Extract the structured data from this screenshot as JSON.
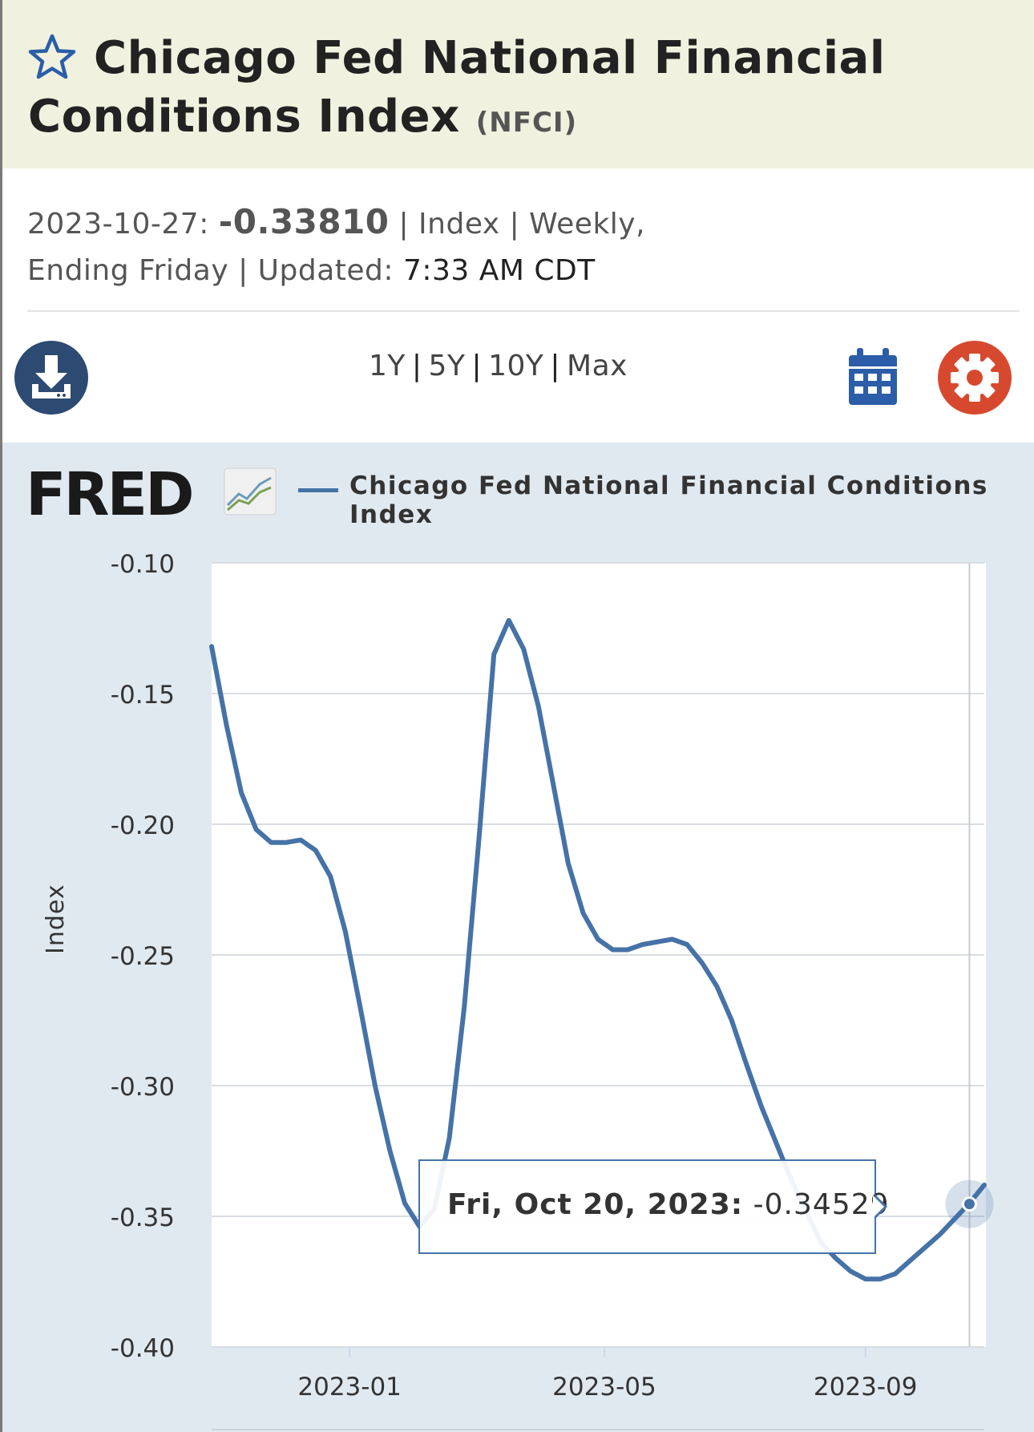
{
  "header": {
    "title_line1": "Chicago Fed National Financial",
    "title_line2": "Conditions Index",
    "series_code": "(NFCI)"
  },
  "meta": {
    "date": "2023-10-27:",
    "value": "-0.33810",
    "sep1": " | Index | Weekly,",
    "line2_prefix": "Ending Friday | Updated: ",
    "updated": "7:33 AM CDT"
  },
  "toolbar": {
    "ranges": [
      "1Y",
      "5Y",
      "10Y",
      "Max"
    ]
  },
  "icons": {
    "favorite": "star-icon",
    "download": "download-icon",
    "calendar": "calendar-icon",
    "settings": "gear-icon"
  },
  "colors": {
    "header_bg": "#f0f2df",
    "chart_bg": "#e1e9f0",
    "series": "#4572a7",
    "download_btn": "#2c4a72",
    "settings_btn": "#d7492f"
  },
  "chart": {
    "logo_text": "FRED",
    "legend": "Chicago Fed National Financial Conditions Index",
    "ylabel": "Index"
  },
  "tooltip": {
    "date": "Fri, Oct 20, 2023:",
    "value": "-0.34529"
  },
  "chart_data": {
    "type": "line",
    "title": "",
    "legend": "Chicago Fed National Financial Conditions Index",
    "xlabel": "",
    "ylabel": "Index",
    "ylim": [
      -0.4,
      -0.1
    ],
    "yticks": [
      "-0.10",
      "-0.15",
      "-0.20",
      "-0.25",
      "-0.30",
      "-0.35",
      "-0.40"
    ],
    "xticks": [
      "2023-01",
      "2023-05",
      "2023-09"
    ],
    "grid": true,
    "legend_position": "top",
    "series": [
      {
        "name": "Chicago Fed National Financial Conditions Index",
        "x": [
          "2022-10-28",
          "2022-11-04",
          "2022-11-11",
          "2022-11-18",
          "2022-11-25",
          "2022-12-02",
          "2022-12-09",
          "2022-12-16",
          "2022-12-23",
          "2022-12-30",
          "2023-01-06",
          "2023-01-13",
          "2023-01-20",
          "2023-01-27",
          "2023-02-03",
          "2023-02-10",
          "2023-02-17",
          "2023-02-24",
          "2023-03-03",
          "2023-03-10",
          "2023-03-17",
          "2023-03-24",
          "2023-03-31",
          "2023-04-07",
          "2023-04-14",
          "2023-04-21",
          "2023-04-28",
          "2023-05-05",
          "2023-05-12",
          "2023-05-19",
          "2023-05-26",
          "2023-06-02",
          "2023-06-09",
          "2023-06-16",
          "2023-06-23",
          "2023-06-30",
          "2023-07-07",
          "2023-07-14",
          "2023-07-21",
          "2023-07-28",
          "2023-08-04",
          "2023-08-11",
          "2023-08-18",
          "2023-08-25",
          "2023-09-01",
          "2023-09-08",
          "2023-09-15",
          "2023-09-22",
          "2023-09-29",
          "2023-10-06",
          "2023-10-13",
          "2023-10-20",
          "2023-10-27"
        ],
        "values": [
          -0.132,
          -0.162,
          -0.188,
          -0.202,
          -0.207,
          -0.207,
          -0.206,
          -0.21,
          -0.22,
          -0.241,
          -0.27,
          -0.3,
          -0.325,
          -0.345,
          -0.354,
          -0.347,
          -0.32,
          -0.27,
          -0.205,
          -0.135,
          -0.122,
          -0.133,
          -0.155,
          -0.185,
          -0.215,
          -0.234,
          -0.244,
          -0.248,
          -0.248,
          -0.246,
          -0.245,
          -0.244,
          -0.246,
          -0.253,
          -0.262,
          -0.275,
          -0.292,
          -0.308,
          -0.322,
          -0.336,
          -0.348,
          -0.36,
          -0.366,
          -0.371,
          -0.374,
          -0.374,
          -0.372,
          -0.367,
          -0.362,
          -0.357,
          -0.351,
          -0.345,
          -0.338
        ]
      }
    ],
    "highlight": {
      "x": "2023-10-20",
      "value": -0.34529
    }
  }
}
